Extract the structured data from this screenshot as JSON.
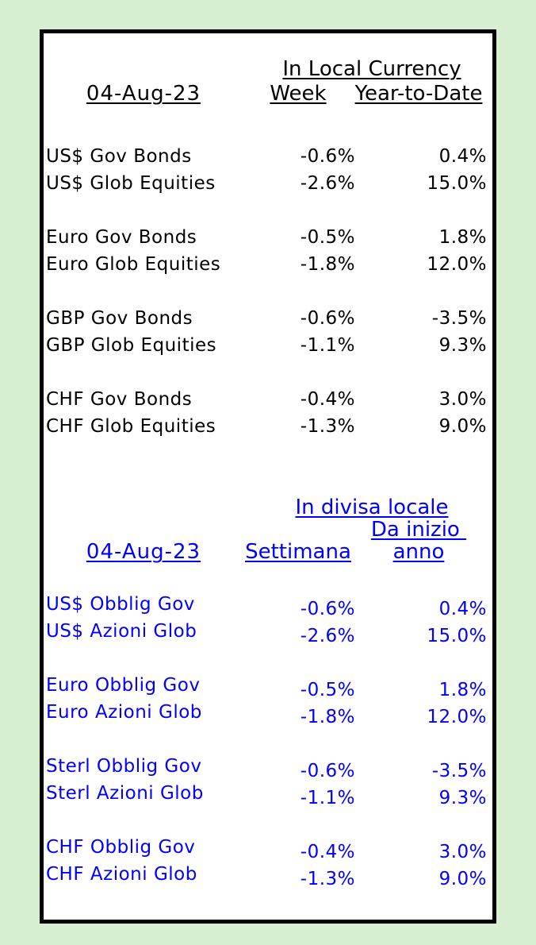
{
  "colors": {
    "page_background": "#d6efd1",
    "panel_background": "#ffffff",
    "panel_border": "#000000",
    "english_text": "#000000",
    "italian_text": "#0000ff"
  },
  "chart_data": [
    {
      "type": "table",
      "language": "English",
      "text_color": "#000000",
      "header_group": "In Local Currency",
      "header_date": "04-Aug-23",
      "header_week": "Week",
      "header_ytd": "Year-to-Date",
      "rows": [
        {
          "label": "US$ Gov Bonds",
          "week": "-0.6%",
          "ytd": "0.4%"
        },
        {
          "label": "US$ Glob Equities",
          "week": "-2.6%",
          "ytd": "15.0%"
        },
        {
          "label": "Euro Gov Bonds",
          "week": "-0.5%",
          "ytd": "1.8%"
        },
        {
          "label": "Euro Glob Equities",
          "week": "-1.8%",
          "ytd": "12.0%"
        },
        {
          "label": "GBP Gov Bonds",
          "week": "-0.6%",
          "ytd": "-3.5%"
        },
        {
          "label": "GBP Glob Equities",
          "week": "-1.1%",
          "ytd": "9.3%"
        },
        {
          "label": "CHF Gov Bonds",
          "week": "-0.4%",
          "ytd": "3.0%"
        },
        {
          "label": "CHF Glob Equities",
          "week": "-1.3%",
          "ytd": "9.0%"
        }
      ]
    },
    {
      "type": "table",
      "language": "Italian",
      "text_color": "#0000ff",
      "header_group": "In divisa locale",
      "header_date": "04-Aug-23",
      "header_week": "Settimana",
      "header_ytd_line1": "Da inizio ",
      "header_ytd_line2": "anno",
      "rows": [
        {
          "label": "US$ Obblig Gov",
          "week": "-0.6%",
          "ytd": "0.4%"
        },
        {
          "label": "US$ Azioni Glob",
          "week": "-2.6%",
          "ytd": "15.0%"
        },
        {
          "label": "Euro Obblig Gov",
          "week": "-0.5%",
          "ytd": "1.8%"
        },
        {
          "label": "Euro Azioni Glob",
          "week": "-1.8%",
          "ytd": "12.0%"
        },
        {
          "label": "Sterl Obblig Gov",
          "week": "-0.6%",
          "ytd": "-3.5%"
        },
        {
          "label": "Sterl Azioni Glob",
          "week": "-1.1%",
          "ytd": "9.3%"
        },
        {
          "label": "CHF Obblig Gov",
          "week": "-0.4%",
          "ytd": "3.0%"
        },
        {
          "label": "CHF Azioni Glob",
          "week": "-1.3%",
          "ytd": "9.0%"
        }
      ]
    }
  ]
}
